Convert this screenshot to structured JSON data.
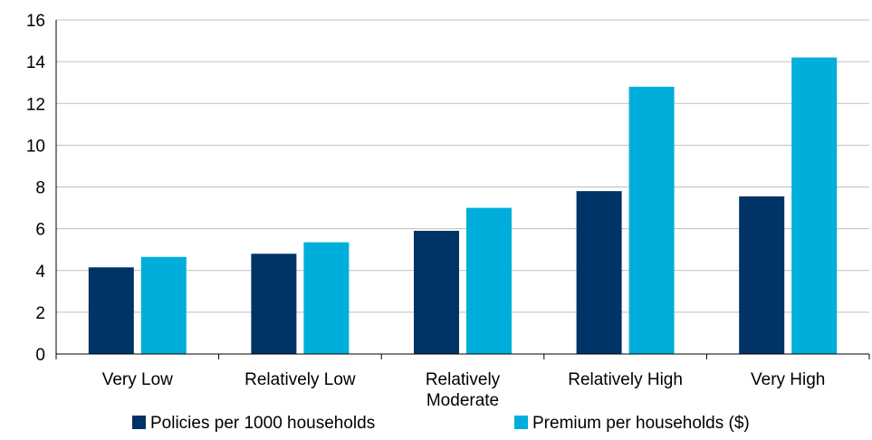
{
  "chart_data": {
    "type": "bar",
    "categories": [
      "Very Low",
      "Relatively Low",
      "Relatively Moderate",
      "Relatively High",
      "Very High"
    ],
    "category_lines": [
      [
        "Very Low"
      ],
      [
        "Relatively Low"
      ],
      [
        "Relatively",
        "Moderate"
      ],
      [
        "Relatively High"
      ],
      [
        "Very High"
      ]
    ],
    "series": [
      {
        "name": "Policies per 1000 households",
        "color": "#003366",
        "values": [
          4.15,
          4.8,
          5.9,
          7.8,
          7.55
        ]
      },
      {
        "name": "Premium per households ($)",
        "color": "#00AEDB",
        "values": [
          4.65,
          5.35,
          7.0,
          12.8,
          14.2
        ]
      }
    ],
    "title": "",
    "xlabel": "",
    "ylabel": "",
    "ylim": [
      0,
      16
    ],
    "yticks": [
      "0",
      "2",
      "4",
      "6",
      "8",
      "10",
      "12",
      "14",
      "16"
    ],
    "grid": true,
    "gridline_color": "#BFBFBF",
    "legend_position": "bottom"
  }
}
